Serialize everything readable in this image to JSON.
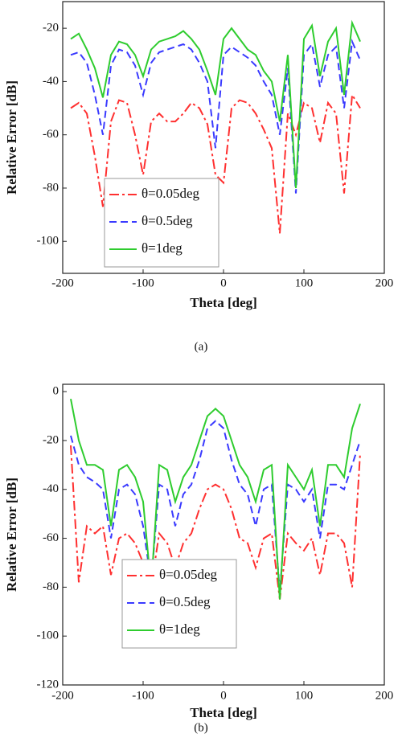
{
  "chart_data": [
    {
      "type": "line",
      "caption": "(a)",
      "xlabel": "Theta [deg]",
      "ylabel": "Relative Error [dB]",
      "xlim": [
        -200,
        200
      ],
      "xticks": [
        -200,
        -100,
        0,
        100,
        200
      ],
      "ylim": [
        -112,
        -10
      ],
      "yticks": [
        -20,
        -40,
        -60,
        -80,
        -100
      ],
      "legend": "lower left",
      "x": [
        -190,
        -180,
        -170,
        -160,
        -150,
        -140,
        -130,
        -120,
        -110,
        -100,
        -90,
        -80,
        -70,
        -60,
        -50,
        -40,
        -30,
        -20,
        -10,
        0,
        10,
        20,
        30,
        40,
        50,
        60,
        70,
        80,
        90,
        100,
        110,
        120,
        130,
        140,
        150,
        160,
        170
      ],
      "series": [
        {
          "name": "θ=0.05deg",
          "color": "#ff3030",
          "dash": "dashdot",
          "values": [
            -50,
            -48,
            -52,
            -68,
            -87,
            -55,
            -47,
            -48,
            -60,
            -75,
            -55,
            -52,
            -55,
            -55,
            -52,
            -48,
            -50,
            -56,
            -75,
            -78,
            -50,
            -47,
            -48,
            -52,
            -58,
            -65,
            -97,
            -52,
            -60,
            -48,
            -50,
            -63,
            -48,
            -52,
            -82,
            -45,
            -50
          ]
        },
        {
          "name": "θ=0.5deg",
          "color": "#3a3aff",
          "dash": "dashed",
          "values": [
            -30,
            -29,
            -33,
            -45,
            -60,
            -34,
            -28,
            -29,
            -34,
            -45,
            -33,
            -29,
            -28,
            -27,
            -26,
            -28,
            -33,
            -40,
            -65,
            -30,
            -27,
            -29,
            -31,
            -34,
            -40,
            -45,
            -60,
            -35,
            -82,
            -30,
            -26,
            -42,
            -30,
            -27,
            -50,
            -25,
            -32
          ]
        },
        {
          "name": "θ=1deg",
          "color": "#2ecc2e",
          "dash": "solid",
          "values": [
            -24,
            -22,
            -28,
            -35,
            -46,
            -30,
            -25,
            -26,
            -30,
            -38,
            -28,
            -25,
            -24,
            -23,
            -21,
            -24,
            -28,
            -36,
            -45,
            -24,
            -20,
            -24,
            -28,
            -30,
            -36,
            -40,
            -55,
            -30,
            -80,
            -24,
            -19,
            -38,
            -25,
            -20,
            -45,
            -18,
            -25
          ]
        }
      ]
    },
    {
      "type": "line",
      "caption": "(b)",
      "xlabel": "Theta [deg]",
      "ylabel": "Relative Error [dB]",
      "xlim": [
        -200,
        200
      ],
      "xticks": [
        -200,
        -100,
        0,
        100,
        200
      ],
      "ylim": [
        -120,
        3
      ],
      "yticks": [
        0,
        -20,
        -40,
        -60,
        -80,
        -100,
        -120
      ],
      "legend": "lower left",
      "x": [
        -190,
        -180,
        -170,
        -160,
        -150,
        -140,
        -130,
        -120,
        -110,
        -100,
        -90,
        -80,
        -70,
        -60,
        -50,
        -40,
        -30,
        -20,
        -10,
        0,
        10,
        20,
        30,
        40,
        50,
        60,
        70,
        80,
        90,
        100,
        110,
        120,
        130,
        140,
        150,
        160,
        170
      ],
      "series": [
        {
          "name": "θ=0.05deg",
          "color": "#ff3030",
          "dash": "dashdot",
          "values": [
            -22,
            -78,
            -55,
            -58,
            -55,
            -75,
            -60,
            -58,
            -62,
            -70,
            -80,
            -58,
            -62,
            -72,
            -62,
            -58,
            -48,
            -40,
            -38,
            -40,
            -48,
            -60,
            -62,
            -72,
            -60,
            -58,
            -85,
            -58,
            -62,
            -65,
            -60,
            -75,
            -58,
            -58,
            -62,
            -80,
            -25
          ]
        },
        {
          "name": "θ=0.5deg",
          "color": "#3a3aff",
          "dash": "dashed",
          "values": [
            -18,
            -30,
            -35,
            -37,
            -40,
            -60,
            -40,
            -38,
            -42,
            -55,
            -78,
            -38,
            -40,
            -55,
            -42,
            -38,
            -28,
            -15,
            -12,
            -15,
            -28,
            -38,
            -42,
            -55,
            -40,
            -38,
            -82,
            -38,
            -40,
            -45,
            -40,
            -60,
            -38,
            -38,
            -40,
            -30,
            -20
          ]
        },
        {
          "name": "θ=1deg",
          "color": "#2ecc2e",
          "dash": "solid",
          "values": [
            -3,
            -20,
            -30,
            -30,
            -32,
            -55,
            -32,
            -30,
            -35,
            -45,
            -80,
            -30,
            -32,
            -45,
            -35,
            -30,
            -20,
            -10,
            -7,
            -10,
            -20,
            -30,
            -35,
            -45,
            -32,
            -30,
            -85,
            -30,
            -35,
            -40,
            -32,
            -55,
            -30,
            -30,
            -35,
            -15,
            -5
          ]
        }
      ]
    }
  ]
}
